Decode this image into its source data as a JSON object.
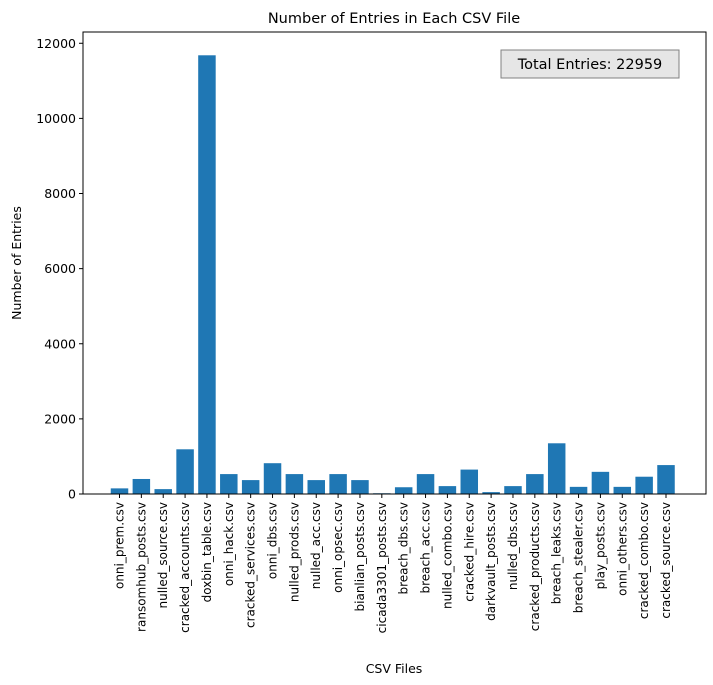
{
  "chart_data": {
    "type": "bar",
    "title": "Number of Entries in Each CSV File",
    "xlabel": "CSV Files",
    "ylabel": "Number of Entries",
    "ylim": [
      0,
      12300
    ],
    "yticks": [
      0,
      2000,
      4000,
      6000,
      8000,
      10000,
      12000
    ],
    "grid": false,
    "bar_color": "#1f77b4",
    "annotation": "Total Entries: 22959",
    "categories": [
      "onni_prem.csv",
      "ransomhub_posts.csv",
      "nulled_source.csv",
      "cracked_accounts.csv",
      "doxbin_table.csv",
      "onni_hack.csv",
      "cracked_services.csv",
      "onni_dbs.csv",
      "nulled_prods.csv",
      "nulled_acc.csv",
      "onni_opsec.csv",
      "bianlian_posts.csv",
      "cicada3301_posts.csv",
      "breach_dbs.csv",
      "breach_acc.csv",
      "nulled_combo.csv",
      "cracked_hire.csv",
      "darkvault_posts.csv",
      "nulled_dbs.csv",
      "cracked_products.csv",
      "breach_leaks.csv",
      "breach_stealer.csv",
      "play_posts.csv",
      "onni_others.csv",
      "cracked_combo.csv",
      "cracked_source.csv"
    ],
    "values": [
      150,
      400,
      130,
      1190,
      11680,
      530,
      370,
      820,
      530,
      370,
      530,
      370,
      20,
      180,
      530,
      210,
      650,
      50,
      210,
      530,
      1350,
      190,
      590,
      190,
      460,
      770
    ]
  }
}
